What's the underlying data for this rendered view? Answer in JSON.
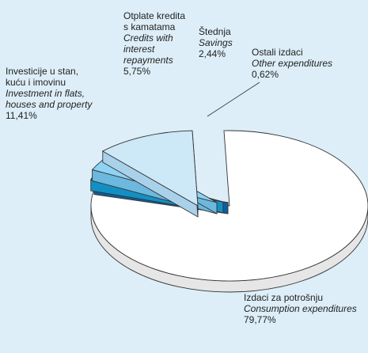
{
  "chart_data": {
    "type": "pie",
    "style": "3d-exploded",
    "title": "",
    "slices": [
      {
        "value": 79.77,
        "label_hr": [
          "Izdaci za potrošnju"
        ],
        "label_en": [
          "Consumption expenditures"
        ],
        "percent_text": "79,77%",
        "color": "#ffffff",
        "side_color": "#e6e6e6"
      },
      {
        "value": 0.62,
        "label_hr": [
          "Ostali izdaci"
        ],
        "label_en": [
          "Other expenditures"
        ],
        "percent_text": "0,62%",
        "color": "#1a78c2",
        "side_color": "#0f5e9c"
      },
      {
        "value": 2.44,
        "label_hr": [
          "Štednja"
        ],
        "label_en": [
          "Savings"
        ],
        "percent_text": "2,44%",
        "color": "#1fb2ec",
        "side_color": "#1290c4"
      },
      {
        "value": 5.75,
        "label_hr": [
          "Otplate kredita",
          "s kamatama"
        ],
        "label_en": [
          "Credits with",
          "interest",
          "repayments"
        ],
        "percent_text": "5,75%",
        "color": "#8fd3f4",
        "side_color": "#6cb8de"
      },
      {
        "value": 11.41,
        "label_hr": [
          "Investicije u stan,",
          "kuću i imovinu"
        ],
        "label_en": [
          "Investment in flats,",
          "houses and property"
        ],
        "percent_text": "11,41%",
        "color": "#cde8f7",
        "side_color": "#a9d2ea"
      }
    ]
  }
}
